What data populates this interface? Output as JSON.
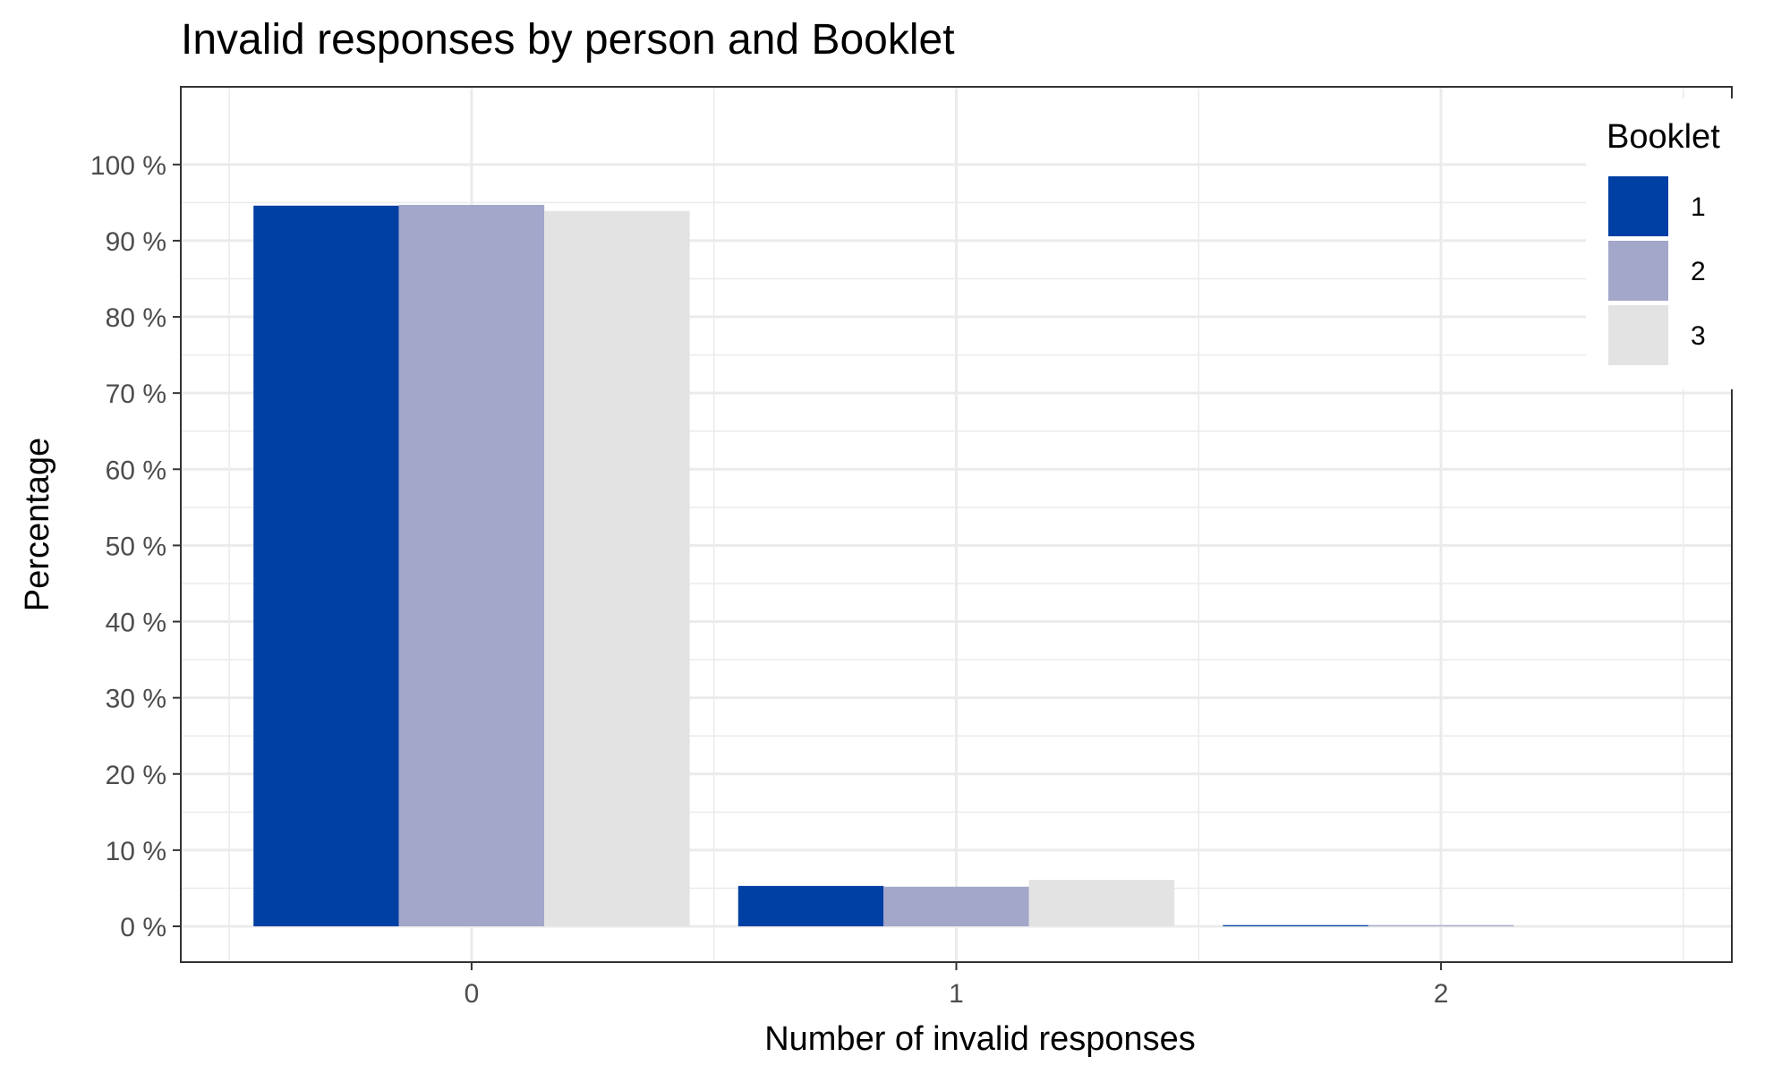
{
  "chart_data": {
    "type": "bar",
    "title": "Invalid responses by person and Booklet",
    "xlabel": "Number of invalid responses",
    "ylabel": "Percentage",
    "categories": [
      "0",
      "1",
      "2"
    ],
    "ylim": [
      -4.7,
      110.2
    ],
    "y_ticks": [
      0,
      10,
      20,
      30,
      40,
      50,
      60,
      70,
      80,
      90,
      100
    ],
    "y_tick_labels": [
      "0 %",
      "10 %",
      "20 %",
      "30 %",
      "40 %",
      "50 %",
      "60 %",
      "70 %",
      "80 %",
      "90 %",
      "100 %"
    ],
    "grid": true,
    "legend": {
      "title": "Booklet",
      "position": "top-right"
    },
    "series": [
      {
        "name": "1",
        "color": "#003fa3",
        "values": [
          94.6,
          5.3,
          0.15
        ]
      },
      {
        "name": "2",
        "color": "#a3a7c9",
        "values": [
          94.7,
          5.2,
          0.15
        ]
      },
      {
        "name": "3",
        "color": "#e3e3e3",
        "values": [
          93.9,
          6.1,
          0.0
        ]
      }
    ]
  }
}
